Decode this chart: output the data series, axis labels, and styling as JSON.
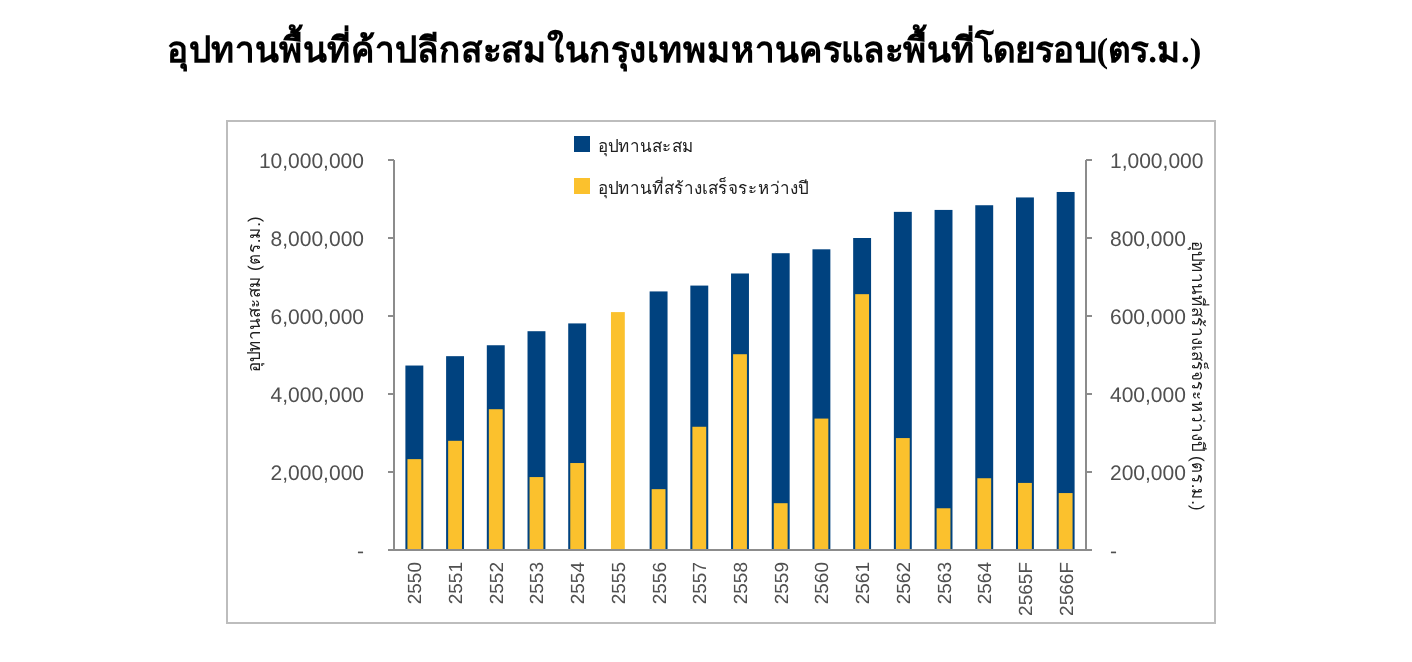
{
  "chart_data": {
    "type": "bar",
    "title": "อุปทานพื้นที่ค้าปลีกสะสมในกรุงเทพมหานครและพื้นที่โดยรอบ(ตร.ม.)",
    "ylabel": "อุปทานสะสม (ตร.ม.)",
    "y2label": "อุปทานที่สร้างเสร็จระหว่างปี (ตร.ม.)",
    "categories": [
      "2550",
      "2551",
      "2552",
      "2553",
      "2554",
      "2555",
      "2556",
      "2557",
      "2558",
      "2559",
      "2560",
      "2561",
      "2562",
      "2563",
      "2564",
      "2565F",
      "2566F"
    ],
    "series": [
      {
        "name": "อุปทานสะสม",
        "color": "#00427f",
        "values": [
          4730000,
          4970000,
          5250000,
          5610000,
          5810000,
          null,
          6630000,
          6780000,
          7090000,
          7610000,
          7710000,
          8000000,
          8670000,
          8720000,
          8840000,
          9040000,
          9180000
        ]
      },
      {
        "name": "อุปทานที่สร้างเสร็จระหว่างปี",
        "color": "#fbc12d",
        "axis": "y2",
        "values": [
          233000,
          280000,
          361000,
          187000,
          223000,
          610000,
          156000,
          316000,
          502000,
          120000,
          337000,
          656000,
          287000,
          107000,
          184000,
          172000,
          146000
        ]
      }
    ],
    "ylim": [
      0,
      10000000
    ],
    "yticks": [
      {
        "value": 0,
        "label": "-"
      },
      {
        "value": 2000000,
        "label": "2,000,000"
      },
      {
        "value": 4000000,
        "label": "4,000,000"
      },
      {
        "value": 6000000,
        "label": "6,000,000"
      },
      {
        "value": 8000000,
        "label": "8,000,000"
      },
      {
        "value": 10000000,
        "label": "10,000,000"
      }
    ],
    "y2lim": [
      0,
      1000000
    ],
    "y2ticks": [
      {
        "value": 0,
        "label": "-"
      },
      {
        "value": 200000,
        "label": "200,000"
      },
      {
        "value": 400000,
        "label": "400,000"
      },
      {
        "value": 600000,
        "label": "600,000"
      },
      {
        "value": 800000,
        "label": "800,000"
      },
      {
        "value": 1000000,
        "label": "1,000,000"
      }
    ],
    "legend": "top"
  }
}
